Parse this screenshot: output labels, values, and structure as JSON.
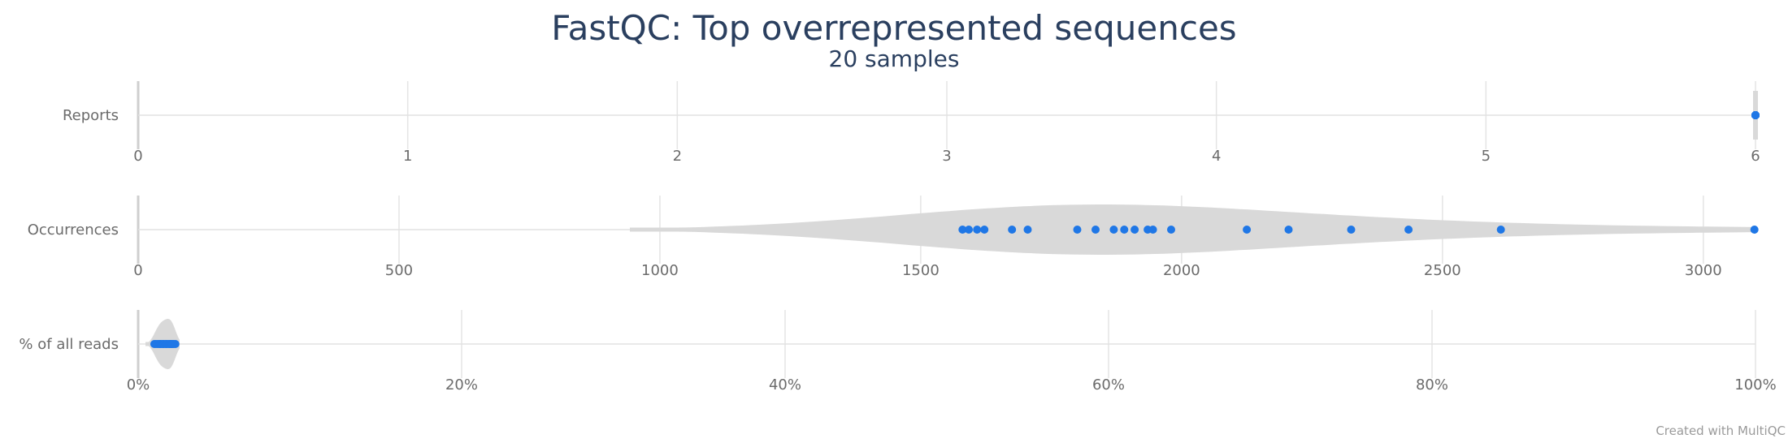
{
  "chart_data": {
    "type": "violin",
    "title": "FastQC: Top overrepresented sequences",
    "subtitle": "20 samples",
    "credit": "Created with MultiQC",
    "point_color": "#1f77e6",
    "violin_color": "#d9d9d9",
    "rows": [
      {
        "label": "Reports",
        "xlim": [
          0,
          6
        ],
        "ticks": [
          0,
          1,
          2,
          3,
          4,
          5,
          6
        ],
        "tick_labels": [
          "0",
          "1",
          "2",
          "3",
          "4",
          "5",
          "6"
        ],
        "points": [
          6,
          6,
          6,
          6,
          6,
          6,
          6,
          6,
          6,
          6,
          6,
          6,
          6,
          6,
          6,
          6,
          6,
          6,
          6,
          6
        ]
      },
      {
        "label": "Occurrences",
        "xlim": [
          0,
          3100
        ],
        "ticks": [
          0,
          500,
          1000,
          1500,
          2000,
          2500,
          3000
        ],
        "tick_labels": [
          "0",
          "500",
          "1000",
          "1500",
          "2000",
          "2500",
          "3000"
        ],
        "points": [
          1580,
          1592,
          1608,
          1622,
          1675,
          1705,
          1800,
          1835,
          1870,
          1890,
          1910,
          1935,
          1945,
          1980,
          2125,
          2205,
          2325,
          2435,
          2612,
          3098
        ]
      },
      {
        "label": "% of all reads",
        "xlim": [
          0,
          100
        ],
        "ticks": [
          0,
          20,
          40,
          60,
          80,
          100
        ],
        "tick_labels": [
          "0%",
          "20%",
          "40%",
          "60%",
          "80%",
          "100%"
        ],
        "points": [
          1.0,
          1.1,
          1.2,
          1.3,
          1.35,
          1.4,
          1.5,
          1.55,
          1.6,
          1.7,
          1.75,
          1.8,
          1.9,
          1.95,
          2.0,
          2.05,
          2.1,
          2.2,
          2.3,
          2.1
        ]
      }
    ]
  }
}
